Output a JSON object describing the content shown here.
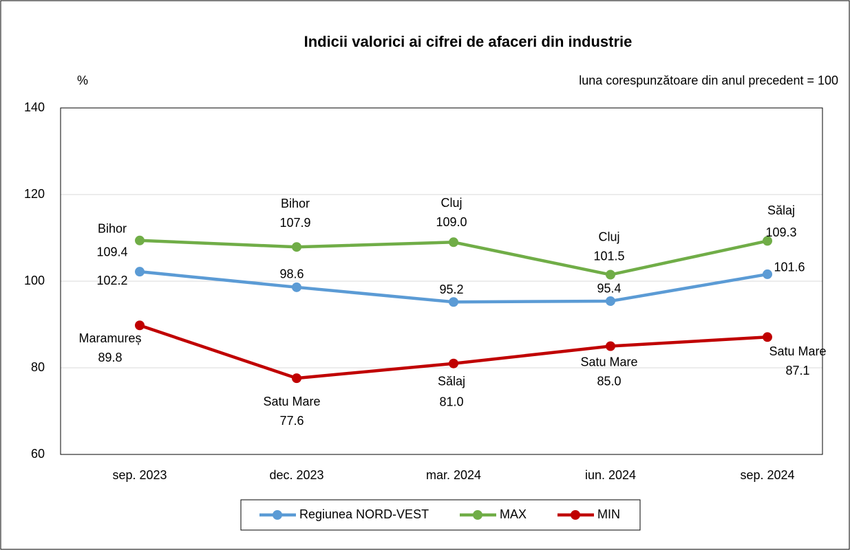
{
  "chart_data": {
    "type": "line",
    "title": "Indicii valorici ai cifrei de afaceri din industrie",
    "y_label": "%",
    "note": "luna corespunzătoare din anul precedent = 100",
    "categories": [
      "sep. 2023",
      "dec. 2023",
      "mar. 2024",
      "iun. 2024",
      "sep. 2024"
    ],
    "ylim": [
      60,
      140
    ],
    "yticks": [
      60,
      80,
      100,
      120,
      140
    ],
    "grid": true,
    "legend": "bottom",
    "series": [
      {
        "name": "Regiunea NORD-VEST",
        "color": "#5b9bd5",
        "values": [
          102.2,
          98.6,
          95.2,
          95.4,
          101.6
        ],
        "value_labels": [
          "102.2",
          "98.6",
          "95.2",
          "95.4",
          "101.6"
        ]
      },
      {
        "name": "MAX",
        "color": "#70ad47",
        "values": [
          109.4,
          107.9,
          109.0,
          101.5,
          109.3
        ],
        "value_labels": [
          "109.4",
          "107.9",
          "109.0",
          "101.5",
          "109.3"
        ],
        "point_labels": [
          "Bihor",
          "Bihor",
          "Cluj",
          "Cluj",
          "Sălaj"
        ]
      },
      {
        "name": "MIN",
        "color": "#c00000",
        "values": [
          89.8,
          77.6,
          81.0,
          85.0,
          87.1
        ],
        "value_labels": [
          "89.8",
          "77.6",
          "81.0",
          "85.0",
          "87.1"
        ],
        "point_labels": [
          "Maramureș",
          "Satu Mare",
          "Sălaj",
          "Satu Mare",
          "Satu Mare"
        ]
      }
    ]
  }
}
